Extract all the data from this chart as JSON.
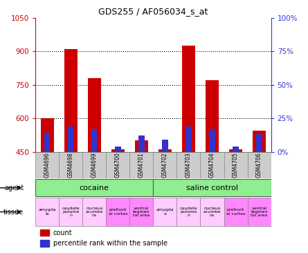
{
  "title": "GDS255 / AF056034_s_at",
  "samples": [
    "GSM4696",
    "GSM4698",
    "GSM4699",
    "GSM4700",
    "GSM4701",
    "GSM4702",
    "GSM4703",
    "GSM4704",
    "GSM4705",
    "GSM4706"
  ],
  "red_counts": [
    600,
    910,
    780,
    462,
    500,
    462,
    925,
    770,
    462,
    545
  ],
  "blue_percentiles_pct": [
    14,
    19,
    17,
    4,
    12,
    9,
    19,
    17,
    4,
    13
  ],
  "ylim_left": [
    450,
    1050
  ],
  "yticks_left": [
    450,
    600,
    750,
    900,
    1050
  ],
  "right_yticks_pct": [
    0,
    25,
    50,
    75,
    100
  ],
  "red_color": "#cc0000",
  "blue_color": "#3333cc",
  "agent_cocaine_color": "#90ee90",
  "agent_saline_color": "#90ee90",
  "tissue_light_pink": "#ffccff",
  "tissue_dark_pink": "#ff88ff",
  "tissue_pattern": [
    0,
    0,
    0,
    1,
    1
  ],
  "tissue_labels_cocaine": [
    "amygda\nla",
    "caudate\nputame\nn",
    "nucleus\nacumbe\nns",
    "prefront\nal cortex",
    "ventral\ntegmen\ntal area"
  ],
  "tissue_labels_saline": [
    "amygda\na",
    "caudate\nputame\nn",
    "nucleus\nacumbe\nns",
    "prefront\nal cortex",
    "ventral\ntegmen\ntal area"
  ],
  "left_tick_color": "#cc0000",
  "right_tick_color": "#3333cc",
  "sample_bg_color": "#cccccc",
  "bar_width": 0.55
}
